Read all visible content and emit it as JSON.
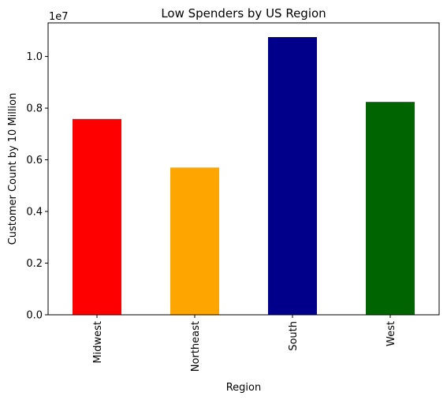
{
  "chart_data": {
    "type": "bar",
    "title": "Low Spenders by US Region",
    "xlabel": "Region",
    "ylabel": "Customer Count by 10 Million",
    "offset_label": "1e7",
    "categories": [
      "Midwest",
      "Northeast",
      "South",
      "West"
    ],
    "values": [
      7580000,
      5700000,
      10750000,
      8240000
    ],
    "colors": [
      "#ff0000",
      "#ffa500",
      "#00008b",
      "#006400"
    ],
    "ylim": [
      0,
      11300000
    ],
    "yticks": [
      0,
      2000000,
      4000000,
      6000000,
      8000000,
      10000000
    ],
    "ytick_labels": [
      "0.0",
      "0.2",
      "0.4",
      "0.6",
      "0.8",
      "1.0"
    ],
    "grid": false,
    "legend": "none"
  }
}
